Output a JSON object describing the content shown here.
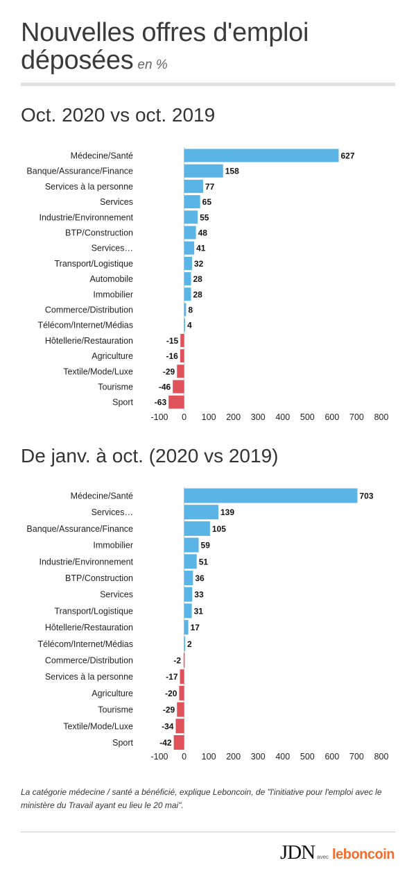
{
  "header": {
    "title": "Nouvelles offres d'emploi déposées",
    "title_line1": "Nouvelles offres d'emploi",
    "title_line2": "déposées",
    "unit": "en %"
  },
  "colors": {
    "positive": "#5ab4e5",
    "negative": "#e0525a",
    "axis_line": "#cccccc"
  },
  "chart_data": [
    {
      "type": "bar",
      "orientation": "horizontal",
      "title": "Oct. 2020 vs oct. 2019",
      "categories": [
        "Médecine/Santé",
        "Banque/Assurance/Finance",
        "Services à la personne",
        "Services",
        "Industrie/Environnement",
        "BTP/Construction",
        "Services…",
        "Transport/Logistique",
        "Automobile",
        "Immobilier",
        "Commerce/Distribution",
        "Télécom/Internet/Médias",
        "Hôtellerie/Restauration",
        "Agriculture",
        "Textile/Mode/Luxe",
        "Tourisme",
        "Sport"
      ],
      "values": [
        627,
        158,
        77,
        65,
        55,
        48,
        41,
        32,
        28,
        28,
        8,
        4,
        -15,
        -16,
        -29,
        -46,
        -63
      ],
      "xlim": [
        -100,
        800
      ],
      "xticks": [
        -100,
        0,
        100,
        200,
        300,
        400,
        500,
        600,
        700,
        800
      ],
      "grid": false
    },
    {
      "type": "bar",
      "orientation": "horizontal",
      "title": "De janv. à oct. (2020 vs 2019)",
      "categories": [
        "Médecine/Santé",
        "Services…",
        "Banque/Assurance/Finance",
        "Immobilier",
        "Industrie/Environnement",
        "BTP/Construction",
        "Services",
        "Transport/Logistique",
        "Hôtellerie/Restauration",
        "Télécom/Internet/Médias",
        "Commerce/Distribution",
        "Services à la personne",
        "Agriculture",
        "Tourisme",
        "Textile/Mode/Luxe",
        "Sport"
      ],
      "values": [
        703,
        139,
        105,
        59,
        51,
        36,
        33,
        31,
        17,
        2,
        -2,
        -17,
        -20,
        -29,
        -34,
        -42
      ],
      "xlim": [
        -100,
        800
      ],
      "xticks": [
        -100,
        0,
        100,
        200,
        300,
        400,
        500,
        600,
        700,
        800
      ],
      "grid": false
    }
  ],
  "footnote": "La catégorie médecine / santé a bénéficié, explique Leboncoin, de \"l'initiative pour l'emploi avec le ministère du Travail ayant eu lieu le 20 mai\".",
  "logos": {
    "jdn": "JDN",
    "avec": "avec",
    "leboncoin": "leboncoin"
  }
}
